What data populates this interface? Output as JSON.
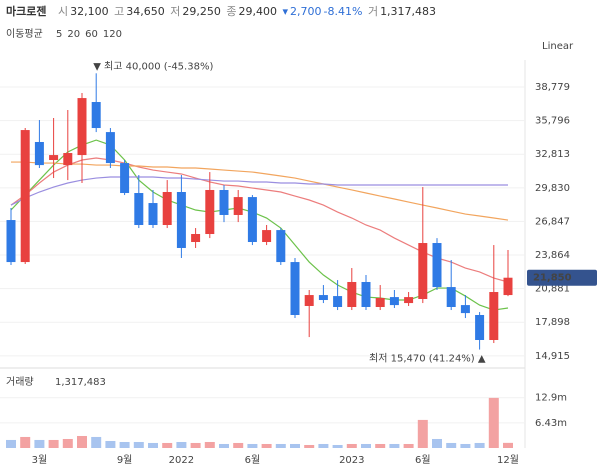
{
  "header": {
    "name": "마크로젠",
    "open": {
      "label": "시",
      "value": "32,100"
    },
    "high": {
      "label": "고",
      "value": "34,650"
    },
    "low": {
      "label": "저",
      "value": "29,250"
    },
    "close": {
      "label": "종",
      "value": "29,400"
    },
    "change": {
      "amount": "2,700",
      "percent": "-8.41%"
    },
    "volume": {
      "label": "거",
      "value": "1,317,483"
    }
  },
  "chart_data": {
    "type": "candlestick",
    "scale_label": "Linear",
    "moving_averages_label": "이동평균",
    "categories": [
      null,
      null,
      "3월",
      null,
      null,
      null,
      null,
      null,
      "9월",
      null,
      null,
      null,
      "2022",
      null,
      null,
      null,
      null,
      "6월",
      null,
      null,
      null,
      null,
      null,
      null,
      "2023",
      null,
      null,
      null,
      null,
      "6월",
      null,
      null,
      null,
      null,
      null,
      "12월"
    ],
    "open": [
      26970,
      23240,
      33900,
      32300,
      31850,
      32740,
      37450,
      34780,
      32030,
      29370,
      28480,
      26530,
      29460,
      25020,
      25730,
      29640,
      27420,
      29010,
      25020,
      26080,
      23240,
      19340,
      20310,
      20220,
      19250,
      21470,
      19250,
      20130,
      19600,
      19960,
      24930,
      21020,
      19420,
      18540,
      16320,
      20310
    ],
    "high": [
      28040,
      35140,
      35850,
      36030,
      36740,
      38250,
      40000,
      35140,
      32300,
      30970,
      29640,
      30520,
      30970,
      26260,
      31230,
      30080,
      29640,
      29190,
      26530,
      26260,
      23600,
      20760,
      21200,
      21640,
      22710,
      22090,
      21200,
      20760,
      20580,
      29900,
      25370,
      23420,
      20310,
      18800,
      24750,
      24310
    ],
    "low": [
      22980,
      23070,
      31590,
      30700,
      30520,
      30260,
      34780,
      31590,
      29190,
      26260,
      26260,
      26260,
      23600,
      24490,
      25370,
      26790,
      26790,
      24750,
      24750,
      22980,
      18270,
      16580,
      19600,
      18980,
      18980,
      18980,
      18980,
      19160,
      19340,
      19600,
      20760,
      18980,
      18270,
      15470,
      16050,
      20220
    ],
    "close": [
      23240,
      34960,
      31850,
      32740,
      32920,
      37800,
      35140,
      32030,
      29370,
      26530,
      26530,
      29460,
      24490,
      25730,
      29640,
      27420,
      29010,
      25020,
      26080,
      23240,
      18540,
      20310,
      19870,
      19250,
      21470,
      19250,
      20050,
      19420,
      20130,
      24930,
      21020,
      19250,
      18710,
      16320,
      20580,
      21850
    ],
    "up_color": "#e8413f",
    "down_color": "#2f7ae5",
    "ylim": [
      14100,
      41180
    ],
    "yticks": [
      {
        "value": 38779,
        "label": "38,779"
      },
      {
        "value": 35796,
        "label": "35,796"
      },
      {
        "value": 32813,
        "label": "32,813"
      },
      {
        "value": 29830,
        "label": "29,830"
      },
      {
        "value": 26847,
        "label": "26,847"
      },
      {
        "value": 23864,
        "label": "23,864"
      },
      {
        "value": 20881,
        "label": "20,881"
      },
      {
        "value": 17898,
        "label": "17,898"
      },
      {
        "value": 14915,
        "label": "14,915"
      }
    ],
    "grid": true,
    "high_annotation": "▼ 최고 40,000 (-45.38%)",
    "low_annotation": "최저 15,470 (41.24%) ▲",
    "last_price": {
      "value": 21850,
      "label": "21,850"
    },
    "last_price_color": "#34538e",
    "moving_averages": [
      {
        "name": "5",
        "color": "#6cc24a",
        "values": [
          27860,
          29190,
          30520,
          31850,
          33010,
          33630,
          34070,
          33630,
          32300,
          30520,
          29460,
          28750,
          28300,
          27860,
          27680,
          27860,
          28040,
          27680,
          27150,
          26260,
          24750,
          23240,
          22090,
          21200,
          20580,
          20130,
          20050,
          19870,
          19870,
          20310,
          20930,
          20930,
          20220,
          19420,
          18980,
          19160
        ]
      },
      {
        "name": "20",
        "color": "#ec7d7d",
        "values": [
          28300,
          29190,
          30260,
          31230,
          31850,
          32300,
          32480,
          32300,
          32030,
          31680,
          31410,
          31230,
          31060,
          30700,
          30350,
          30080,
          29990,
          29810,
          29640,
          29460,
          29100,
          28750,
          28300,
          27680,
          27150,
          26530,
          26080,
          25370,
          24750,
          24130,
          23600,
          23240,
          22710,
          22360,
          21820,
          21470
        ]
      },
      {
        "name": "60",
        "color": "#f2a55e",
        "values": [
          32120,
          32120,
          32030,
          32030,
          31940,
          31940,
          31850,
          31850,
          31770,
          31770,
          31680,
          31680,
          31590,
          31590,
          31500,
          31410,
          31320,
          31230,
          31060,
          30880,
          30700,
          30430,
          30170,
          29900,
          29640,
          29370,
          29100,
          28840,
          28570,
          28300,
          28040,
          27770,
          27500,
          27330,
          27150,
          26970
        ]
      },
      {
        "name": "120",
        "color": "#9a8ee0",
        "values": [
          28300,
          28930,
          29460,
          29900,
          30260,
          30520,
          30700,
          30790,
          30790,
          30790,
          30790,
          30700,
          30700,
          30610,
          30520,
          30430,
          30430,
          30350,
          30350,
          30260,
          30260,
          30170,
          30170,
          30080,
          30080,
          30080,
          30080,
          30080,
          30080,
          30080,
          30080,
          30080,
          30080,
          30080,
          30080,
          30080
        ]
      }
    ],
    "volume": {
      "label": "거래량",
      "last": "1,317,483",
      "up_color": "#f3a2a2",
      "down_color": "#a8c4ef",
      "values": [
        2060000,
        2830000,
        2060000,
        2060000,
        2310000,
        3080000,
        2830000,
        1800000,
        1540000,
        1540000,
        1290000,
        1290000,
        1540000,
        1290000,
        1540000,
        1030000,
        1290000,
        1030000,
        1030000,
        1030000,
        1030000,
        770000,
        1030000,
        770000,
        1030000,
        1030000,
        1030000,
        1030000,
        1030000,
        7200000,
        2310000,
        1290000,
        1030000,
        1290000,
        12850000,
        1317483
      ],
      "ylim": [
        0,
        20000000
      ],
      "yticks": [
        {
          "value": 12900000,
          "label": "12.9m"
        },
        {
          "value": 6430000,
          "label": "6.43m"
        }
      ]
    }
  }
}
